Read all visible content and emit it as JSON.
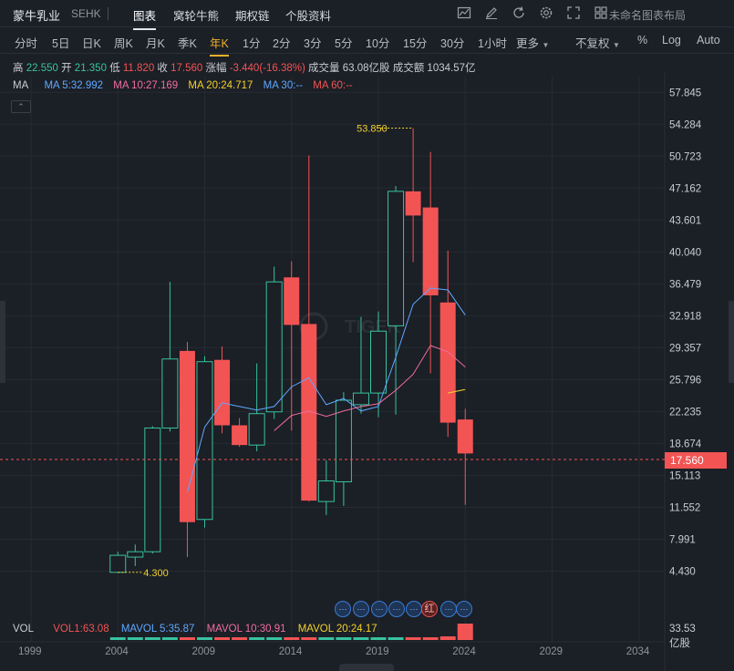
{
  "header": {
    "title": "蒙牛乳业",
    "exchange": "SEHK",
    "tabs": [
      "图表",
      "窝轮牛熊",
      "期权链",
      "个股资料"
    ],
    "active_tab": "图表",
    "layout_name": "未命名图表布局"
  },
  "intervals": {
    "items": [
      "分时",
      "5日",
      "日K",
      "周K",
      "月K",
      "季K",
      "年K",
      "1分",
      "2分",
      "3分",
      "5分",
      "10分",
      "15分",
      "30分",
      "1小时",
      "更多"
    ],
    "active": "年K",
    "adjust": "不复权",
    "percent": "%",
    "log": "Log",
    "auto": "Auto"
  },
  "ohlc": {
    "high_label": "高",
    "high": "22.550",
    "open_label": "开",
    "open": "21.350",
    "low_label": "低",
    "low": "11.820",
    "close_label": "收",
    "close": "17.560",
    "chg_label": "涨幅",
    "chg": "-3.440(-16.38%)",
    "vol_label": "成交量",
    "vol": "63.08亿股",
    "amt_label": "成交额",
    "amt": "1034.57亿"
  },
  "ma": {
    "label": "MA",
    "ma5": "MA 5:32.992",
    "ma10": "MA 10:27.169",
    "ma20": "MA 20:24.717",
    "ma30": "MA 30:--",
    "ma60": "MA 60:--"
  },
  "volume": {
    "label": "VOL",
    "vol1": "VOL1:63.08",
    "mavol5": "MAVOL 5:35.87",
    "mavol10": "MAVOL 10:30.91",
    "mavol20": "MAVOL 20:24.17",
    "axis_value": "33.53",
    "unit": "亿股"
  },
  "price_axis": [
    "57.845",
    "54.284",
    "50.723",
    "47.162",
    "43.601",
    "40.040",
    "36.479",
    "32.918",
    "29.357",
    "25.796",
    "22.235",
    "18.674",
    "15.113",
    "11.552",
    "7.991",
    "4.430"
  ],
  "current_price": "17.560",
  "high_marker": "53.850",
  "low_marker": "4.300",
  "year_axis": [
    "1999",
    "2004",
    "2009",
    "2014",
    "2019",
    "2024",
    "2029",
    "2034"
  ],
  "event_badges": [
    "···",
    "···",
    "···",
    "···",
    "···",
    "···",
    "红",
    "···",
    "···"
  ],
  "colors": {
    "up": "#38c3a0",
    "down": "#f25454",
    "ma5": "#5fa8ff",
    "ma10": "#f06ea0",
    "ma20": "#f2d22c",
    "accent": "#f2b12c"
  },
  "chart_data": {
    "type": "candlestick",
    "y_range": [
      2.65,
      59.6
    ],
    "candles": [
      {
        "year": 2004,
        "open": 4.3,
        "close": 6.2,
        "high": 6.6,
        "low": 4.3
      },
      {
        "year": 2005,
        "open": 6.0,
        "close": 6.6,
        "high": 7.4,
        "low": 5.0
      },
      {
        "year": 2006,
        "open": 6.6,
        "close": 20.4,
        "high": 20.6,
        "low": 6.4
      },
      {
        "year": 2007,
        "open": 20.4,
        "close": 28.1,
        "high": 36.7,
        "low": 20.0
      },
      {
        "year": 2008,
        "open": 29.0,
        "close": 9.9,
        "high": 30.0,
        "low": 6.0
      },
      {
        "year": 2009,
        "open": 10.2,
        "close": 27.8,
        "high": 28.4,
        "low": 9.3
      },
      {
        "year": 2010,
        "open": 28.0,
        "close": 20.7,
        "high": 29.5,
        "low": 19.8
      },
      {
        "year": 2011,
        "open": 20.7,
        "close": 18.5,
        "high": 21.5,
        "low": 18.3
      },
      {
        "year": 2012,
        "open": 18.5,
        "close": 22.0,
        "high": 27.6,
        "low": 17.8
      },
      {
        "year": 2013,
        "open": 22.2,
        "close": 36.7,
        "high": 38.4,
        "low": 21.4
      },
      {
        "year": 2014,
        "open": 37.2,
        "close": 31.9,
        "high": 39.0,
        "low": 20.1
      },
      {
        "year": 2015,
        "open": 32.0,
        "close": 12.3,
        "high": 50.8,
        "low": 12.2
      },
      {
        "year": 2016,
        "open": 12.2,
        "close": 14.5,
        "high": 16.8,
        "low": 10.7
      },
      {
        "year": 2017,
        "open": 14.4,
        "close": 23.5,
        "high": 24.4,
        "low": 11.7
      },
      {
        "year": 2018,
        "open": 23.0,
        "close": 24.3,
        "high": 32.8,
        "low": 22.0
      },
      {
        "year": 2019,
        "open": 24.3,
        "close": 31.2,
        "high": 33.4,
        "low": 21.6
      },
      {
        "year": 2020,
        "open": 31.8,
        "close": 46.8,
        "high": 47.4,
        "low": 21.9
      },
      {
        "year": 2021,
        "open": 46.8,
        "close": 44.1,
        "high": 53.85,
        "low": 38.9
      },
      {
        "year": 2022,
        "open": 45.0,
        "close": 35.2,
        "high": 51.2,
        "low": 26.5
      },
      {
        "year": 2023,
        "open": 34.4,
        "close": 21.0,
        "high": 40.2,
        "low": 19.4
      },
      {
        "year": 2024,
        "open": 21.35,
        "close": 17.56,
        "high": 22.55,
        "low": 11.82
      }
    ],
    "ma5": [
      [
        2008,
        13.2
      ],
      [
        2009,
        20.5
      ],
      [
        2010,
        23.2
      ],
      [
        2011,
        22.8
      ],
      [
        2012,
        22.4
      ],
      [
        2013,
        22.8
      ],
      [
        2014,
        25.0
      ],
      [
        2015,
        26.0
      ],
      [
        2016,
        23.0
      ],
      [
        2017,
        23.7
      ],
      [
        2018,
        22.3
      ],
      [
        2019,
        22.8
      ],
      [
        2020,
        28.3
      ],
      [
        2021,
        34.2
      ],
      [
        2022,
        36.0
      ],
      [
        2023,
        35.8
      ],
      [
        2024,
        33.0
      ]
    ],
    "ma10": [
      [
        2013,
        20.1
      ],
      [
        2014,
        21.8
      ],
      [
        2015,
        22.3
      ],
      [
        2016,
        21.7
      ],
      [
        2017,
        22.3
      ],
      [
        2018,
        22.8
      ],
      [
        2019,
        23.1
      ],
      [
        2020,
        24.6
      ],
      [
        2021,
        26.4
      ],
      [
        2022,
        29.6
      ],
      [
        2023,
        28.9
      ],
      [
        2024,
        27.2
      ]
    ],
    "ma20": [
      [
        2023,
        24.3
      ],
      [
        2024,
        24.7
      ]
    ],
    "volume": [
      {
        "year": 2004,
        "v": 3,
        "up": true
      },
      {
        "year": 2005,
        "v": 3,
        "up": true
      },
      {
        "year": 2006,
        "v": 3,
        "up": true
      },
      {
        "year": 2007,
        "v": 3,
        "up": true
      },
      {
        "year": 2008,
        "v": 3,
        "up": false
      },
      {
        "year": 2009,
        "v": 3,
        "up": true
      },
      {
        "year": 2010,
        "v": 3,
        "up": false
      },
      {
        "year": 2011,
        "v": 3,
        "up": false
      },
      {
        "year": 2012,
        "v": 3,
        "up": true
      },
      {
        "year": 2013,
        "v": 3,
        "up": true
      },
      {
        "year": 2014,
        "v": 3,
        "up": false
      },
      {
        "year": 2015,
        "v": 3,
        "up": false
      },
      {
        "year": 2016,
        "v": 3,
        "up": true
      },
      {
        "year": 2017,
        "v": 3,
        "up": true
      },
      {
        "year": 2018,
        "v": 3,
        "up": true
      },
      {
        "year": 2019,
        "v": 3,
        "up": true
      },
      {
        "year": 2020,
        "v": 3,
        "up": true
      },
      {
        "year": 2021,
        "v": 3,
        "up": false
      },
      {
        "year": 2022,
        "v": 3,
        "up": false
      },
      {
        "year": 2023,
        "v": 4,
        "up": false
      },
      {
        "year": 2024,
        "v": 18,
        "up": false
      }
    ]
  }
}
